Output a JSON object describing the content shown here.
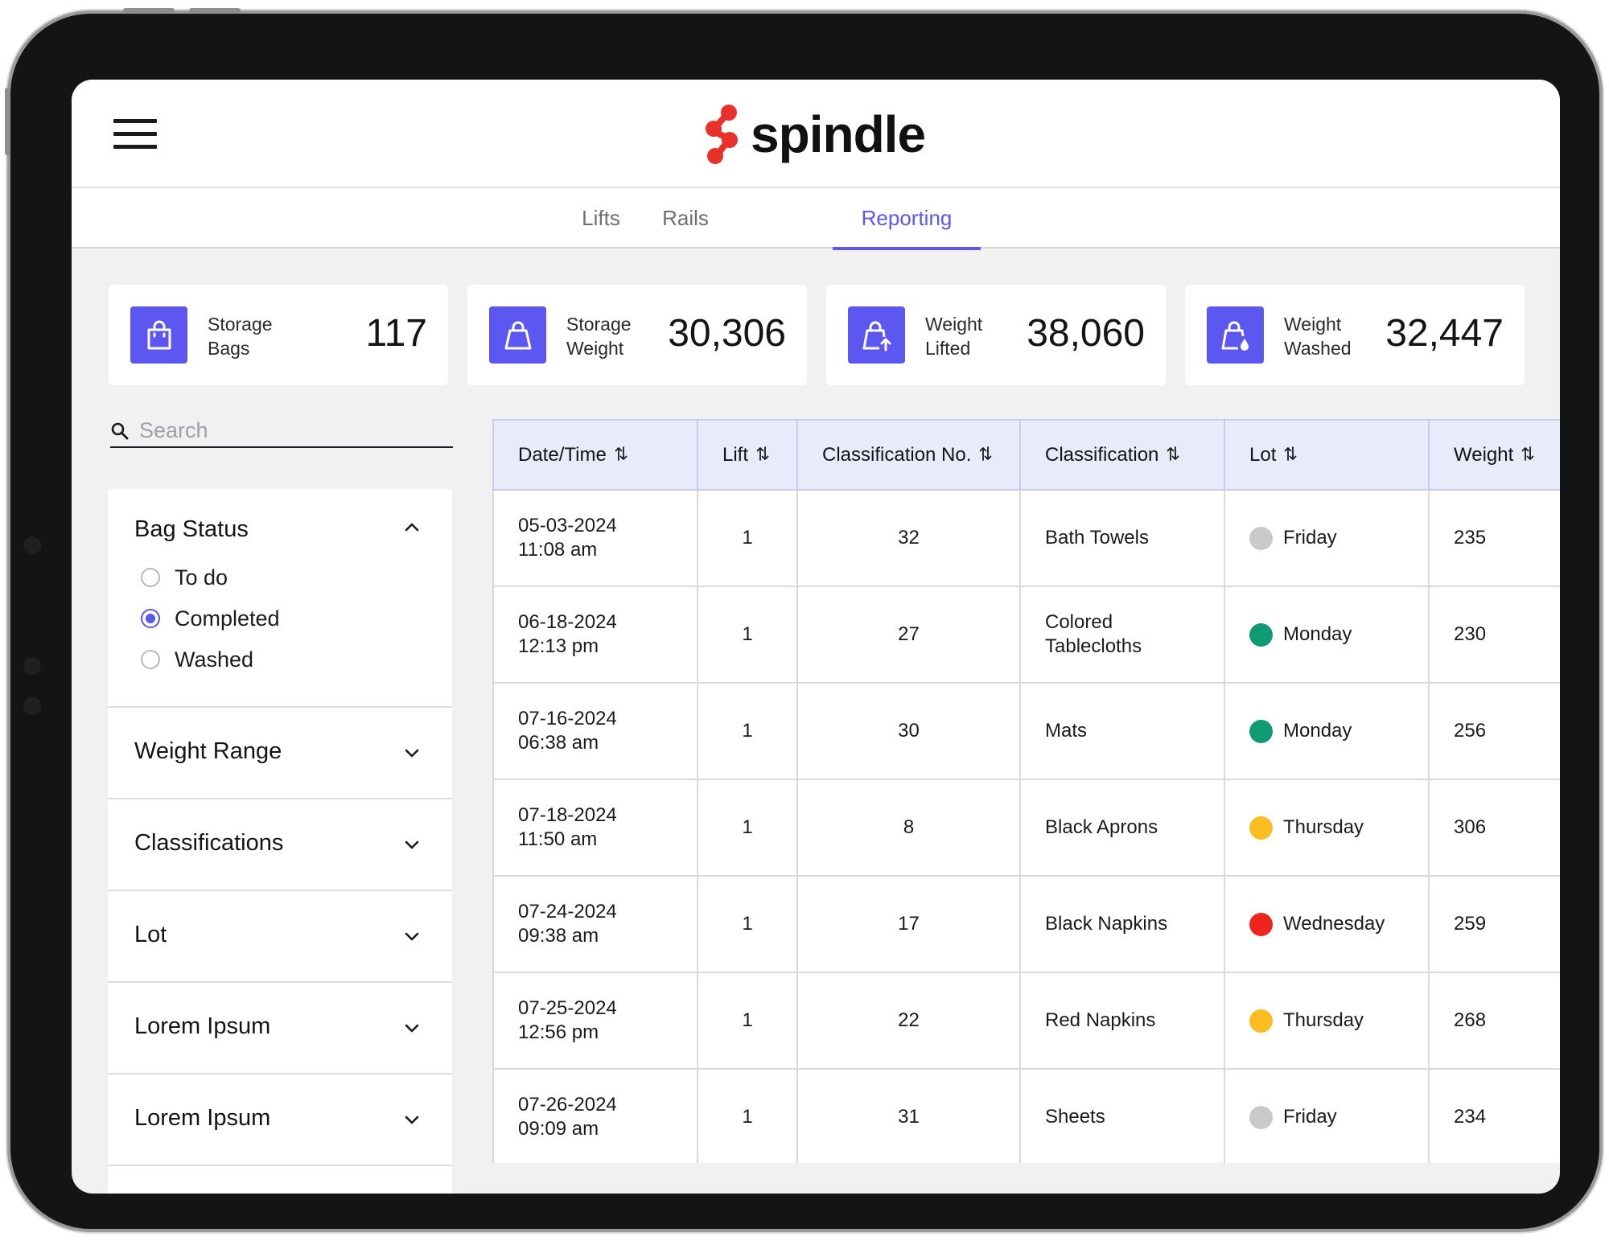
{
  "app": {
    "brand": "spindle",
    "brand_color": "#e8312b",
    "accent": "#5b57f0"
  },
  "tabs": [
    {
      "label": "Lifts",
      "active": false
    },
    {
      "label": "Rails",
      "active": false
    },
    {
      "label": "Reporting",
      "active": true
    }
  ],
  "stats": [
    {
      "label": "Storage\nBags",
      "value": "117",
      "icon": "shopping-bag-icon"
    },
    {
      "label": "Storage\nWeight",
      "value": "30,306",
      "icon": "bag-weight-icon"
    },
    {
      "label": "Weight\nLifted",
      "value": "38,060",
      "icon": "bag-lift-icon"
    },
    {
      "label": "Weight\nWashed",
      "value": "32,447",
      "icon": "bag-wash-icon"
    }
  ],
  "search": {
    "placeholder": "Search",
    "value": ""
  },
  "filters": {
    "bag_status": {
      "title": "Bag Status",
      "expanded": true,
      "options": [
        {
          "label": "To do",
          "checked": false
        },
        {
          "label": "Completed",
          "checked": true
        },
        {
          "label": "Washed",
          "checked": false
        }
      ]
    },
    "sections": [
      {
        "title": "Weight Range",
        "expanded": false
      },
      {
        "title": "Classifications",
        "expanded": false
      },
      {
        "title": "Lot",
        "expanded": false
      },
      {
        "title": "Lorem Ipsum",
        "expanded": false
      },
      {
        "title": "Lorem Ipsum",
        "expanded": false
      }
    ]
  },
  "table": {
    "columns": [
      "Date/Time",
      "Lift",
      "Classification No.",
      "Classification",
      "Lot",
      "Weight"
    ],
    "rows": [
      {
        "date": "05-03-2024",
        "time": "11:08 am",
        "lift": "1",
        "class_no": "32",
        "classification": "Bath Towels",
        "lot": "Friday",
        "lot_color": "#c9c9c9",
        "weight": "235"
      },
      {
        "date": "06-18-2024",
        "time": "12:13 pm",
        "lift": "1",
        "class_no": "27",
        "classification": "Colored Tablecloths",
        "lot": "Monday",
        "lot_color": "#0f9a74",
        "weight": "230"
      },
      {
        "date": "07-16-2024",
        "time": "06:38 am",
        "lift": "1",
        "class_no": "30",
        "classification": "Mats",
        "lot": "Monday",
        "lot_color": "#0f9a74",
        "weight": "256"
      },
      {
        "date": "07-18-2024",
        "time": "11:50 am",
        "lift": "1",
        "class_no": "8",
        "classification": "Black Aprons",
        "lot": "Thursday",
        "lot_color": "#fbbd22",
        "weight": "306"
      },
      {
        "date": "07-24-2024",
        "time": "09:38 am",
        "lift": "1",
        "class_no": "17",
        "classification": "Black Napkins",
        "lot": "Wednesday",
        "lot_color": "#f0241e",
        "weight": "259"
      },
      {
        "date": "07-25-2024",
        "time": "12:56 pm",
        "lift": "1",
        "class_no": "22",
        "classification": "Red Napkins",
        "lot": "Thursday",
        "lot_color": "#fbbd22",
        "weight": "268"
      },
      {
        "date": "07-26-2024",
        "time": "09:09 am",
        "lift": "1",
        "class_no": "31",
        "classification": "Sheets",
        "lot": "Friday",
        "lot_color": "#c9c9c9",
        "weight": "234"
      }
    ]
  }
}
